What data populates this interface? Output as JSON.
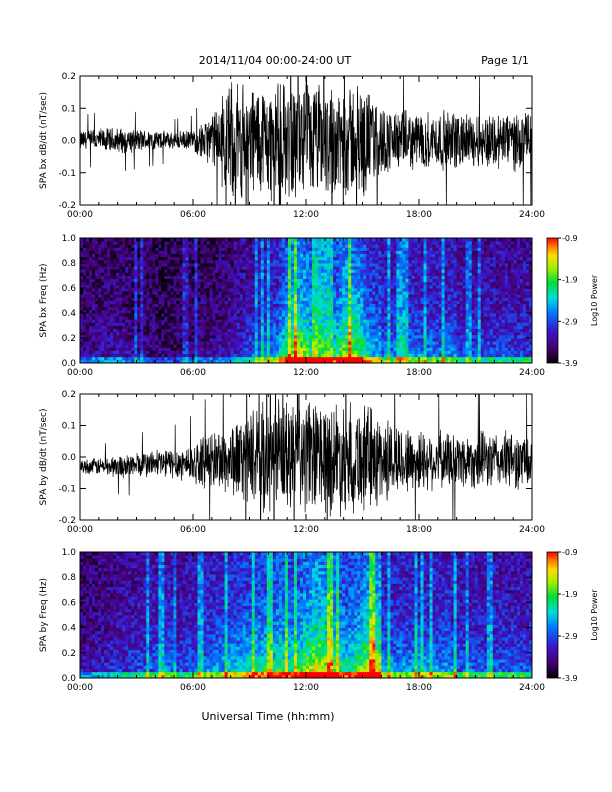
{
  "header": {
    "date_range": "2014/11/04  00:00-24:00 UT",
    "page": "Page 1/1"
  },
  "footer": {
    "xlabel": "Universal Time (hh:mm)"
  },
  "colorbar": {
    "label": "Log10 Power",
    "ticks": [
      "-0.9",
      "-1.9",
      "-2.9",
      "-3.9"
    ],
    "range": [
      -3.9,
      -0.9
    ]
  },
  "chart_data": [
    {
      "type": "line",
      "ylabel": "SPA bx dB/dt (nT/sec)",
      "x_ticks": [
        "00:00",
        "06:00",
        "12:00",
        "18:00",
        "24:00"
      ],
      "xlim": [
        0,
        24
      ],
      "ylim": [
        -0.2,
        0.2
      ],
      "y_ticks": [
        "-0.2",
        "-0.1",
        "0.0",
        "0.1",
        "0.2"
      ],
      "envelope": {
        "hours": [
          0,
          1,
          2,
          3,
          4,
          5,
          6,
          7,
          8,
          9,
          10,
          11,
          12,
          13,
          14,
          15,
          16,
          17,
          18,
          19,
          20,
          21,
          22,
          23,
          24
        ],
        "amplitude": [
          0.035,
          0.04,
          0.045,
          0.04,
          0.035,
          0.03,
          0.035,
          0.09,
          0.2,
          0.2,
          0.2,
          0.2,
          0.2,
          0.2,
          0.2,
          0.2,
          0.12,
          0.1,
          0.1,
          0.1,
          0.1,
          0.09,
          0.1,
          0.1,
          0.1
        ],
        "offset": [
          0.0,
          0.0,
          0.0,
          0.0,
          0.0,
          0.0,
          0.0,
          0.0,
          0.0,
          0.0,
          0.0,
          0.0,
          0.0,
          0.0,
          0.0,
          0.0,
          0.0,
          0.0,
          0.0,
          0.0,
          0.0,
          0.0,
          0.0,
          0.0,
          0.0
        ]
      }
    },
    {
      "type": "heatmap",
      "ylabel": "SPA bx Freq (Hz)",
      "x_ticks": [
        "00:00",
        "06:00",
        "12:00",
        "18:00",
        "24:00"
      ],
      "xlim": [
        0,
        24
      ],
      "ylim": [
        0,
        1
      ],
      "y_ticks": [
        "0.0",
        "0.2",
        "0.4",
        "0.6",
        "0.8",
        "1.0"
      ],
      "zlim": [
        -3.9,
        -0.9
      ]
    },
    {
      "type": "line",
      "ylabel": "SPA by dB/dt (nT/sec)",
      "x_ticks": [
        "00:00",
        "06:00",
        "12:00",
        "18:00",
        "24:00"
      ],
      "xlim": [
        0,
        24
      ],
      "ylim": [
        -0.2,
        0.2
      ],
      "y_ticks": [
        "-0.2",
        "-0.1",
        "0.0",
        "0.1",
        "0.2"
      ],
      "envelope": {
        "hours": [
          0,
          1,
          2,
          3,
          4,
          5,
          6,
          7,
          8,
          9,
          10,
          11,
          12,
          13,
          14,
          15,
          16,
          17,
          18,
          19,
          20,
          21,
          22,
          23,
          24
        ],
        "amplitude": [
          0.025,
          0.03,
          0.04,
          0.045,
          0.05,
          0.055,
          0.07,
          0.1,
          0.13,
          0.16,
          0.2,
          0.2,
          0.2,
          0.2,
          0.2,
          0.2,
          0.16,
          0.12,
          0.11,
          0.1,
          0.1,
          0.1,
          0.1,
          0.1,
          0.1
        ],
        "offset": [
          -0.03,
          -0.03,
          -0.03,
          -0.025,
          -0.02,
          -0.02,
          -0.02,
          -0.01,
          -0.01,
          0.0,
          0.0,
          0.0,
          0.0,
          0.0,
          0.0,
          0.0,
          -0.01,
          -0.01,
          -0.01,
          -0.01,
          -0.01,
          -0.01,
          -0.01,
          -0.01,
          -0.02
        ]
      }
    },
    {
      "type": "heatmap",
      "ylabel": "SPA by Freq (Hz)",
      "x_ticks": [
        "00:00",
        "06:00",
        "12:00",
        "18:00",
        "24:00"
      ],
      "xlim": [
        0,
        24
      ],
      "ylim": [
        0,
        1
      ],
      "y_ticks": [
        "0.0",
        "0.2",
        "0.4",
        "0.6",
        "0.8",
        "1.0"
      ],
      "zlim": [
        -3.9,
        -0.9
      ]
    }
  ]
}
